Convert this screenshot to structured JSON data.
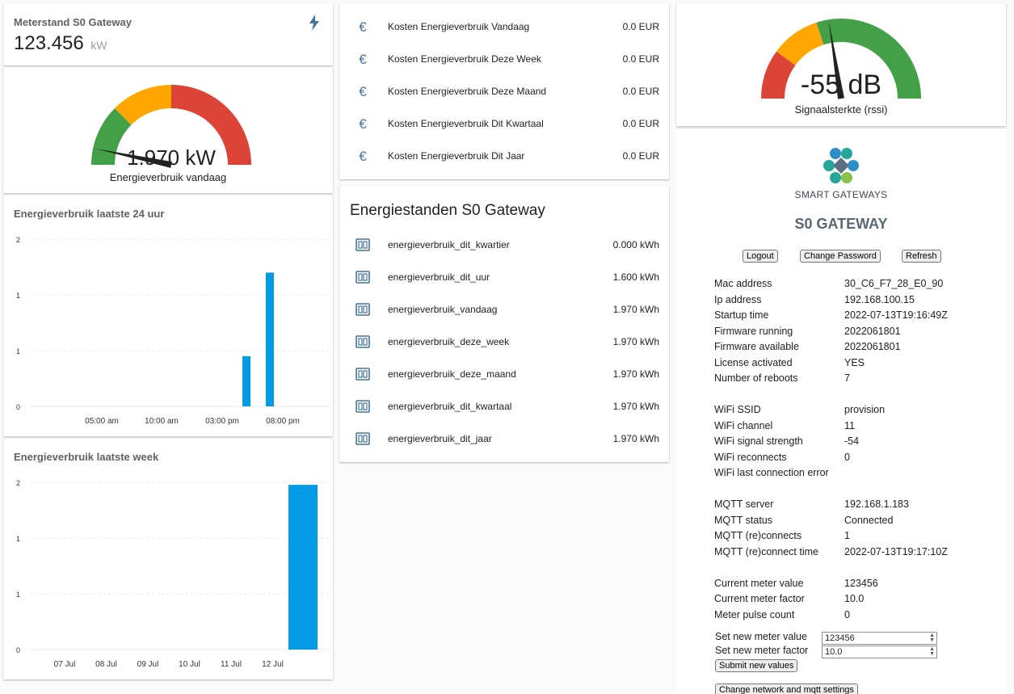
{
  "meter": {
    "title": "Meterstand S0 Gateway",
    "value": "123.456",
    "unit": "kW",
    "icon": "lightning-bolt-icon"
  },
  "gauge_power": {
    "value_text": "1.970 kW",
    "label": "Energieverbruik vandaag",
    "value": 1.97,
    "max": 5,
    "colors": {
      "green": "#43a047",
      "yellow": "#ffa600",
      "red": "#db4437"
    }
  },
  "chart24": {
    "title": "Energieverbruik laatste 24 uur",
    "chart_data": {
      "type": "bar",
      "title": "Energieverbruik laatste 24 uur",
      "y_ticks": [
        "0",
        "1",
        "1",
        "2"
      ],
      "x_ticks": [
        "05:00 am",
        "10:00 am",
        "03:00 pm",
        "08:00 pm"
      ],
      "ylim": [
        0,
        2
      ],
      "color": "#039be5",
      "bars": [
        {
          "x": "06:00 pm",
          "y": 0.6
        },
        {
          "x": "08:00 pm",
          "y": 1.6
        }
      ]
    }
  },
  "chartweek": {
    "title": "Energieverbruik laatste week",
    "chart_data": {
      "type": "bar",
      "title": "Energieverbruik laatste week",
      "y_ticks": [
        "0",
        "1",
        "1",
        "2"
      ],
      "x_ticks": [
        "07 Jul",
        "08 Jul",
        "09 Jul",
        "10 Jul",
        "11 Jul",
        "12 Jul"
      ],
      "ylim": [
        0,
        2
      ],
      "color": "#039be5",
      "bars": [
        {
          "x": "13 Jul",
          "y": 1.97
        }
      ]
    }
  },
  "costs": [
    {
      "label": "Kosten Energieverbruik Vandaag",
      "value": "0.0 EUR",
      "icon": "euro-icon"
    },
    {
      "label": "Kosten Energieverbruik Deze Week",
      "value": "0.0 EUR",
      "icon": "euro-icon"
    },
    {
      "label": "Kosten Energieverbruik Deze Maand",
      "value": "0.0 EUR",
      "icon": "euro-icon"
    },
    {
      "label": "Kosten Energieverbruik Dit Kwartaal",
      "value": "0.0 EUR",
      "icon": "euro-icon"
    },
    {
      "label": "Kosten Energieverbruik Dit Jaar",
      "value": "0.0 EUR",
      "icon": "euro-icon"
    }
  ],
  "standen": {
    "title": "Energiestanden S0 Gateway",
    "items": [
      {
        "label": "energieverbruik_dit_kwartier",
        "value": "0.000 kWh",
        "icon": "meter-icon"
      },
      {
        "label": "energieverbruik_dit_uur",
        "value": "1.600 kWh",
        "icon": "meter-icon"
      },
      {
        "label": "energieverbruik_vandaag",
        "value": "1.970 kWh",
        "icon": "meter-icon"
      },
      {
        "label": "energieverbruik_deze_week",
        "value": "1.970 kWh",
        "icon": "meter-icon"
      },
      {
        "label": "energieverbruik_deze_maand",
        "value": "1.970 kWh",
        "icon": "meter-icon"
      },
      {
        "label": "energieverbruik_dit_kwartaal",
        "value": "1.970 kWh",
        "icon": "meter-icon"
      },
      {
        "label": "energieverbruik_dit_jaar",
        "value": "1.970 kWh",
        "icon": "meter-icon"
      }
    ]
  },
  "gauge_rssi": {
    "value_text": "-55 dB",
    "label": "Signaalsterkte (rssi)",
    "value": -55,
    "min": -100,
    "max": 0
  },
  "gateway": {
    "logo_text": "SMART GATEWAYS",
    "title": "S0 GATEWAY",
    "buttons": {
      "logout": "Logout",
      "change_password": "Change Password",
      "refresh": "Refresh"
    },
    "info": [
      {
        "label": "Mac address",
        "value": "30_C6_F7_28_E0_90"
      },
      {
        "label": "Ip address",
        "value": "192.168.100.15"
      },
      {
        "label": "Startup time",
        "value": "2022-07-13T19:16:49Z"
      },
      {
        "label": "Firmware running",
        "value": "2022061801"
      },
      {
        "label": "Firmware available",
        "value": "2022061801"
      },
      {
        "label": "License activated",
        "value": "YES"
      },
      {
        "label": "Number of reboots",
        "value": "7"
      },
      {
        "label": "",
        "value": ""
      },
      {
        "label": "WiFi SSID",
        "value": "provision"
      },
      {
        "label": "WiFi channel",
        "value": "11"
      },
      {
        "label": "WiFi signal strength",
        "value": "-54"
      },
      {
        "label": "WiFi reconnects",
        "value": "0"
      },
      {
        "label": "WiFi last connection error",
        "value": ""
      },
      {
        "label": "",
        "value": ""
      },
      {
        "label": "MQTT server",
        "value": "192.168.1.183"
      },
      {
        "label": "MQTT status",
        "value": "Connected"
      },
      {
        "label": "MQTT (re)connects",
        "value": "1"
      },
      {
        "label": "MQTT (re)connect time",
        "value": "2022-07-13T19:17:10Z"
      },
      {
        "label": "",
        "value": ""
      },
      {
        "label": "Current meter value",
        "value": "123456"
      },
      {
        "label": "Current meter factor",
        "value": "10.0"
      },
      {
        "label": "Meter pulse count",
        "value": "0"
      }
    ],
    "set_meter_value_label": "Set new meter value",
    "set_meter_value": "123456",
    "set_meter_factor_label": "Set new meter factor",
    "set_meter_factor": "10.0",
    "submit_label": "Submit new values",
    "network_label": "Change network and mqtt settings"
  }
}
